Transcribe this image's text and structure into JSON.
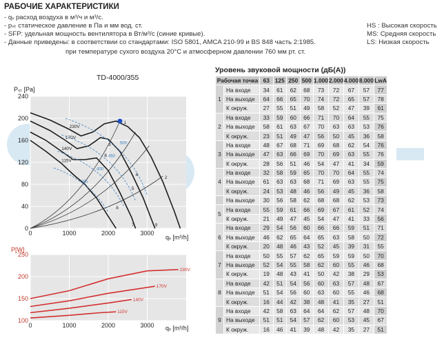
{
  "header": {
    "title": "РАБОЧИЕ ХАРАКТЕРИСТИКИ",
    "lines": [
      "- qᵥ расход воздуха в м³/ч и м³/с.",
      "- pₛₜ  статическое давление в Па и мм вод. ст.",
      "- SFP: удельная мощность вентилятора в Вт/м³/с (синие кривые).",
      "- Данные приведены: в соответствии со стандартами: ISO 5801, AMCA 210-99 и BS 848 часть 2:1985.",
      "при температуре сухого воздуха 20°С и атмосферном давлении 760 мм рт. ст."
    ],
    "speed_legend": [
      "HS : Высокая скорость",
      "MS: Средняя скорость",
      "LS: Низкая скорость"
    ]
  },
  "chart_data": [
    {
      "type": "line",
      "title": "TD-4000/355",
      "ylabel": "Pₛₜ [Pa]",
      "xlabel": "qᵥ [m³/h]",
      "xlim": [
        0,
        4000
      ],
      "ylim": [
        0,
        240
      ],
      "x_ticks": [
        "0",
        "1000",
        "2000",
        "3000"
      ],
      "y_ticks": [
        "0",
        "40",
        "80",
        "120",
        "160",
        "200",
        "240"
      ],
      "series": [
        {
          "name": "230V",
          "points": [
            [
              0,
              210
            ],
            [
              500,
              197
            ],
            [
              1000,
              180
            ],
            [
              1300,
              168
            ],
            [
              1600,
              175
            ],
            [
              1900,
              190
            ],
            [
              2200,
              195
            ],
            [
              2500,
              185
            ],
            [
              2800,
              165
            ],
            [
              3100,
              130
            ],
            [
              3400,
              85
            ],
            [
              3700,
              30
            ],
            [
              3850,
              0
            ]
          ]
        },
        {
          "name": "170V",
          "points": [
            [
              0,
              195
            ],
            [
              500,
              178
            ],
            [
              900,
              160
            ],
            [
              1200,
              145
            ],
            [
              1500,
              150
            ],
            [
              1800,
              165
            ],
            [
              2000,
              162
            ],
            [
              2300,
              140
            ],
            [
              2600,
              100
            ],
            [
              2900,
              55
            ],
            [
              3200,
              0
            ]
          ]
        },
        {
          "name": "140V",
          "points": [
            [
              0,
              175
            ],
            [
              400,
              160
            ],
            [
              800,
              140
            ],
            [
              1100,
              125
            ],
            [
              1400,
              125
            ],
            [
              1700,
              128
            ],
            [
              2000,
              105
            ],
            [
              2300,
              65
            ],
            [
              2600,
              20
            ],
            [
              2700,
              0
            ]
          ]
        },
        {
          "name": "115V",
          "points": [
            [
              0,
              160
            ],
            [
              400,
              140
            ],
            [
              800,
              118
            ],
            [
              1100,
              98
            ],
            [
              1400,
              80
            ],
            [
              1700,
              55
            ],
            [
              2000,
              22
            ],
            [
              2200,
              0
            ]
          ]
        }
      ],
      "operating_points": [
        "1",
        "2",
        "3",
        "4",
        "5",
        "6",
        "7",
        "8",
        "9"
      ],
      "sfp_labels": [
        "500",
        "450",
        "400",
        "350"
      ]
    },
    {
      "type": "line",
      "ylabel": "P[W]",
      "xlabel": "qᵥ [m³/h]",
      "xlim": [
        0,
        4000
      ],
      "ylim": [
        100,
        250
      ],
      "x_ticks": [
        "0",
        "1000",
        "2000",
        "3000"
      ],
      "y_ticks": [
        "100",
        "150",
        "200",
        "250"
      ],
      "series": [
        {
          "name": "230V",
          "points": [
            [
              0,
              150
            ],
            [
              1000,
              168
            ],
            [
              2000,
              195
            ],
            [
              3000,
              213
            ],
            [
              3800,
              216
            ]
          ]
        },
        {
          "name": "170V",
          "points": [
            [
              0,
              132
            ],
            [
              1000,
              145
            ],
            [
              2000,
              162
            ],
            [
              3200,
              178
            ]
          ]
        },
        {
          "name": "140V",
          "points": [
            [
              0,
              118
            ],
            [
              1000,
              128
            ],
            [
              2000,
              140
            ],
            [
              2600,
              148
            ]
          ]
        },
        {
          "name": "115V",
          "points": [
            [
              0,
              106
            ],
            [
              1000,
              112
            ],
            [
              1800,
              118
            ],
            [
              2200,
              120
            ]
          ]
        }
      ]
    }
  ],
  "sound_table": {
    "title": "Уровень звуковой мощности (дБ(А))",
    "headers": [
      "Рабочая точка",
      "63",
      "125",
      "250",
      "500",
      "1.000",
      "2.000",
      "4.000",
      "8.000",
      "LwA"
    ],
    "groups": [
      {
        "point": "1",
        "rows": [
          {
            "label": "На входе",
            "values": [
              "34",
              "61",
              "62",
              "68",
              "73",
              "72",
              "67",
              "57",
              "77"
            ]
          },
          {
            "label": "На выходе",
            "values": [
              "64",
              "66",
              "65",
              "70",
              "74",
              "72",
              "65",
              "57",
              "78"
            ]
          },
          {
            "label": "К окруж.",
            "values": [
              "27",
              "55",
              "51",
              "49",
              "58",
              "52",
              "47",
              "39",
              "61"
            ]
          }
        ]
      },
      {
        "point": "2",
        "rows": [
          {
            "label": "На входе",
            "values": [
              "33",
              "59",
              "60",
              "66",
              "71",
              "70",
              "64",
              "55",
              "75"
            ]
          },
          {
            "label": "На выходе",
            "values": [
              "58",
              "61",
              "63",
              "67",
              "70",
              "63",
              "63",
              "53",
              "76"
            ]
          },
          {
            "label": "К окруж.",
            "values": [
              "23",
              "51",
              "49",
              "47",
              "56",
              "50",
              "45",
              "36",
              "58"
            ]
          }
        ]
      },
      {
        "point": "3",
        "rows": [
          {
            "label": "На входе",
            "values": [
              "48",
              "67",
              "68",
              "71",
              "69",
              "68",
              "62",
              "54",
              "76"
            ]
          },
          {
            "label": "На выходе",
            "values": [
              "47",
              "63",
              "66",
              "69",
              "70",
              "69",
              "63",
              "55",
              "76"
            ]
          },
          {
            "label": "К окруж.",
            "values": [
              "28",
              "56",
              "51",
              "46",
              "54",
              "47",
              "41",
              "34",
              "59"
            ]
          }
        ]
      },
      {
        "point": "4",
        "rows": [
          {
            "label": "На входе",
            "values": [
              "32",
              "58",
              "59",
              "65",
              "70",
              "70",
              "64",
              "55",
              "74"
            ]
          },
          {
            "label": "На выходе",
            "values": [
              "61",
              "63",
              "63",
              "68",
              "71",
              "69",
              "63",
              "55",
              "75"
            ]
          },
          {
            "label": "К окруж.",
            "values": [
              "24",
              "53",
              "48",
              "46",
              "56",
              "49",
              "45",
              "36",
              "58"
            ]
          }
        ]
      },
      {
        "point": "",
        "rows": [
          {
            "label": "На выходе",
            "values": [
              "30",
              "56",
              "58",
              "62",
              "68",
              "68",
              "62",
              "53",
              "73"
            ]
          }
        ]
      },
      {
        "point": "5",
        "rows": [
          {
            "label": "На входе",
            "values": [
              "55",
              "59",
              "61",
              "66",
              "69",
              "67",
              "61",
              "52",
              "74"
            ]
          },
          {
            "label": "К окруж.",
            "values": [
              "21",
              "49",
              "47",
              "45",
              "54",
              "47",
              "41",
              "33",
              "56"
            ]
          }
        ]
      },
      {
        "point": "6",
        "rows": [
          {
            "label": "На входе",
            "values": [
              "29",
              "54",
              "56",
              "60",
              "66",
              "66",
              "59",
              "51",
              "71"
            ]
          },
          {
            "label": "На выходе",
            "values": [
              "46",
              "62",
              "65",
              "64",
              "65",
              "63",
              "58",
              "50",
              "72"
            ]
          },
          {
            "label": "К окруж.",
            "values": [
              "20",
              "48",
              "46",
              "43",
              "52",
              "45",
              "39",
              "31",
              "55"
            ]
          }
        ]
      },
      {
        "point": "7",
        "rows": [
          {
            "label": "На входе",
            "values": [
              "50",
              "55",
              "57",
              "62",
              "65",
              "59",
              "59",
              "50",
              "70"
            ]
          },
          {
            "label": "На выходе",
            "values": [
              "52",
              "54",
              "55",
              "58",
              "62",
              "60",
              "55",
              "46",
              "68"
            ]
          },
          {
            "label": "К окруж.",
            "values": [
              "19",
              "48",
              "43",
              "41",
              "50",
              "42",
              "38",
              "29",
              "53"
            ]
          }
        ]
      },
      {
        "point": "8",
        "rows": [
          {
            "label": "На входе",
            "values": [
              "42",
              "51",
              "54",
              "56",
              "60",
              "63",
              "57",
              "48",
              "67"
            ]
          },
          {
            "label": "На выходе",
            "values": [
              "51",
              "54",
              "56",
              "60",
              "63",
              "60",
              "55",
              "46",
              "68"
            ]
          },
          {
            "label": "К окруж.",
            "values": [
              "16",
              "44",
              "42",
              "38",
              "48",
              "41",
              "35",
              "27",
              "51"
            ]
          }
        ]
      },
      {
        "point": "9",
        "rows": [
          {
            "label": "На входе",
            "values": [
              "42",
              "58",
              "63",
              "64",
              "64",
              "62",
              "57",
              "48",
              "70"
            ]
          },
          {
            "label": "На выходе",
            "values": [
              "51",
              "51",
              "54",
              "57",
              "62",
              "60",
              "53",
              "45",
              "67"
            ]
          },
          {
            "label": "К окруж.",
            "values": [
              "16",
              "46",
              "41",
              "39",
              "48",
              "42",
              "35",
              "27",
              "51"
            ]
          }
        ]
      }
    ]
  }
}
